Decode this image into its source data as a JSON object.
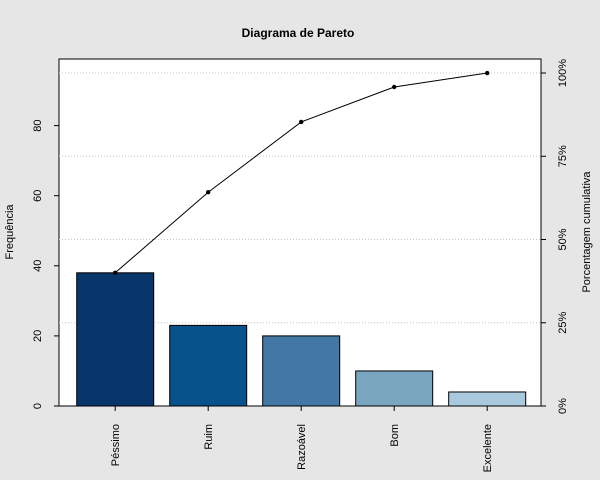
{
  "chart_data": {
    "type": "bar",
    "title": "Diagrama de Pareto",
    "categories": [
      "Péssimo",
      "Ruim",
      "Razoável",
      "Bom",
      "Excelente"
    ],
    "values": [
      38,
      23,
      20,
      10,
      4
    ],
    "cumulative_percent": [
      40,
      64.2,
      85.3,
      95.8,
      100
    ],
    "ylabel": "Frequência",
    "y2label": "Porcentagem cumulativa",
    "ylim": [
      0,
      99
    ],
    "yticks": [
      "0",
      "20",
      "40",
      "60",
      "80"
    ],
    "y2ticks": [
      "0%",
      "25%",
      "50%",
      "75%",
      "100%"
    ],
    "grid": "horizontal dotted at cumulative percent ticks",
    "bar_colors": [
      "#08366a",
      "#08528c",
      "#4377a6",
      "#7aa5be",
      "#a9c9df"
    ],
    "line_color": "#000000",
    "background_color": "#e6e6e6",
    "plot_background": "#ffffff"
  }
}
